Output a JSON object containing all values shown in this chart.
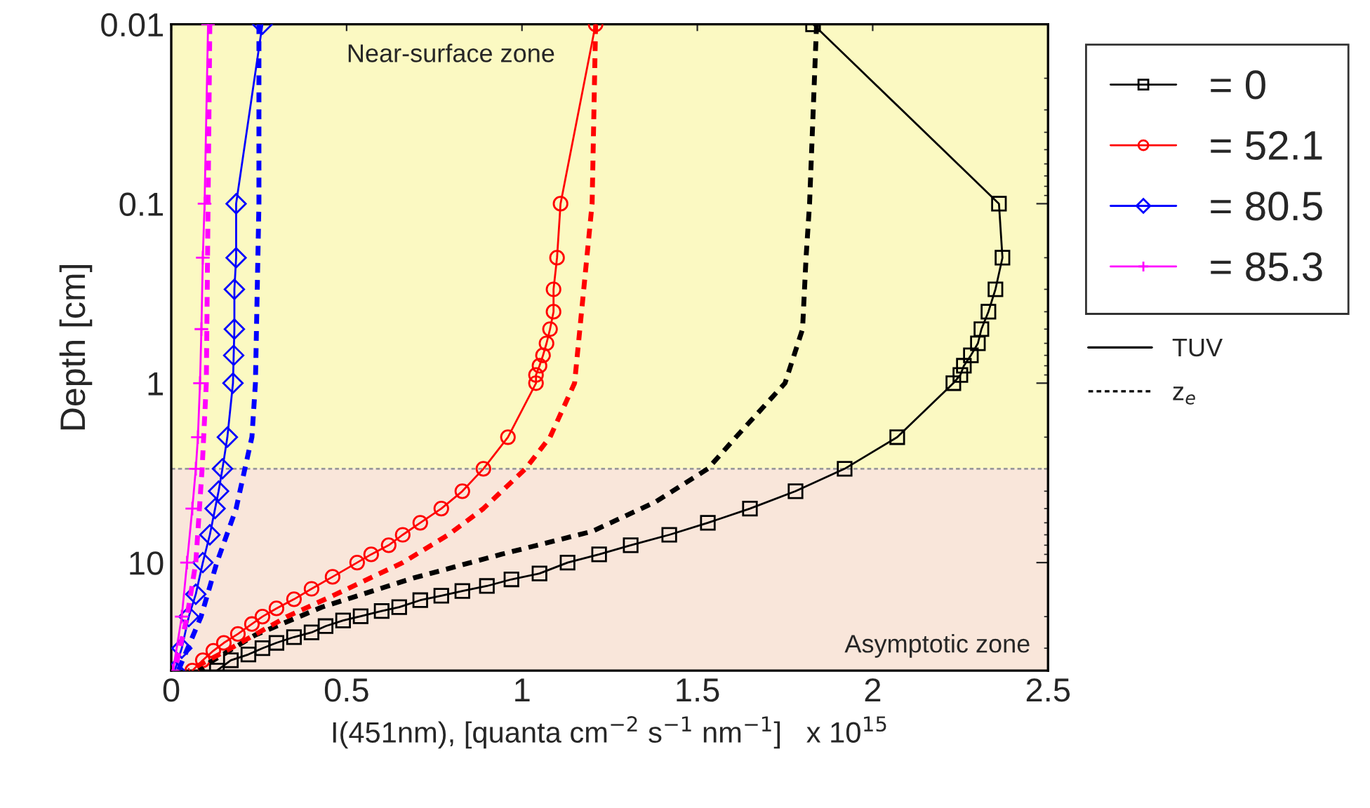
{
  "chart_data": {
    "type": "line",
    "xlabel": "I(451nm), [quanta cm$^{−2}$ s$^{−1}$ nm$^{−1}$]   x 10$^{15}$",
    "ylabel": "Depth [cm]",
    "xlim": [
      0,
      2.5
    ],
    "xticks": [
      0,
      0.5,
      1,
      1.5,
      2,
      2.5
    ],
    "ylim": [
      40,
      0.01
    ],
    "yticks": [
      0.01,
      0.1,
      1,
      10
    ],
    "log": "y",
    "grid": false,
    "legend": "right",
    "series": [
      {
        "name": "= 0",
        "color": "#000000",
        "marker": "square",
        "line_style": "solid",
        "x": [
          1.83,
          2.36,
          2.37,
          2.35,
          2.33,
          2.31,
          2.3,
          2.28,
          2.26,
          2.25,
          2.23,
          2.07,
          1.92,
          1.78,
          1.65,
          1.53,
          1.42,
          1.31,
          1.22,
          1.13,
          1.05,
          0.97,
          0.9,
          0.83,
          0.77,
          0.71,
          0.65,
          0.6,
          0.54,
          0.49,
          0.44,
          0.4,
          0.35,
          0.3,
          0.26,
          0.22,
          0.17,
          0.13
        ],
        "values": [
          0.01,
          0.1,
          0.2,
          0.3,
          0.4,
          0.5,
          0.6,
          0.7,
          0.8,
          0.9,
          1,
          2,
          3,
          4,
          5,
          6,
          7,
          8,
          9,
          10,
          11.5,
          12.4,
          13.5,
          14.4,
          15.3,
          16.2,
          17.7,
          18.6,
          19.9,
          21,
          22.6,
          24.5,
          26,
          28,
          30,
          32.5,
          35,
          40
        ]
      },
      {
        "name": "= 52.1",
        "color": "#ff0000",
        "marker": "circle",
        "line_style": "solid",
        "x": [
          1.21,
          1.11,
          1.1,
          1.09,
          1.09,
          1.08,
          1.07,
          1.06,
          1.05,
          1.04,
          1.04,
          0.96,
          0.89,
          0.83,
          0.77,
          0.71,
          0.66,
          0.62,
          0.57,
          0.53,
          0.46,
          0.4,
          0.35,
          0.3,
          0.26,
          0.23,
          0.19,
          0.15,
          0.12,
          0.09,
          0.06
        ],
        "values": [
          0.01,
          0.1,
          0.2,
          0.3,
          0.4,
          0.5,
          0.6,
          0.7,
          0.8,
          0.9,
          1,
          2,
          3,
          4,
          5,
          6,
          7,
          8,
          9,
          10,
          12,
          14,
          16,
          18,
          20,
          22,
          25,
          28,
          31,
          35,
          40
        ]
      },
      {
        "name": "= 80.5",
        "color": "#0000ff",
        "marker": "diamond",
        "line_style": "solid",
        "x": [
          0.26,
          0.185,
          0.185,
          0.18,
          0.18,
          0.178,
          0.176,
          0.16,
          0.146,
          0.135,
          0.125,
          0.11,
          0.09,
          0.07,
          0.05,
          0.03,
          0.01
        ],
        "values": [
          0.01,
          0.1,
          0.2,
          0.3,
          0.5,
          0.7,
          1,
          2,
          3,
          4,
          5,
          7,
          10,
          15,
          20,
          30,
          40
        ]
      },
      {
        "name": "= 85.3",
        "color": "#ff00ff",
        "marker": "cross",
        "line_style": "solid",
        "x": [
          0.105,
          0.095,
          0.09,
          0.086,
          0.082,
          0.076,
          0.07,
          0.06,
          0.045,
          0.03,
          0.005
        ],
        "values": [
          0.01,
          0.1,
          0.2,
          0.5,
          1,
          2,
          3,
          5,
          10,
          20,
          40
        ]
      },
      {
        "color": "#000000",
        "marker": "none",
        "line_style": "dashed",
        "x": [
          1.84,
          1.82,
          1.81,
          1.8,
          1.75,
          1.61,
          1.53,
          1.38,
          1.2,
          0.94,
          0.69,
          0.43,
          0.24,
          0.11,
          0.08
        ],
        "values": [
          0.01,
          0.1,
          0.2,
          0.5,
          1,
          2,
          3,
          4.6,
          6.7,
          9,
          12.2,
          17.7,
          25.3,
          36,
          40
        ]
      },
      {
        "color": "#ff0000",
        "marker": "none",
        "line_style": "dashed",
        "x": [
          1.21,
          1.2,
          1.15,
          1.08,
          1.01,
          0.89,
          0.79,
          0.66,
          0.47,
          0.33,
          0.17,
          0.05
        ],
        "values": [
          0.01,
          0.1,
          1,
          2,
          3,
          5,
          7,
          10,
          15,
          20,
          30,
          40
        ]
      },
      {
        "color": "#0000ff",
        "marker": "none",
        "line_style": "dashed",
        "x": [
          0.25,
          0.25,
          0.24,
          0.23,
          0.21,
          0.185,
          0.13,
          0.085,
          0.02
        ],
        "values": [
          0.01,
          0.1,
          1,
          2,
          3,
          5,
          10,
          20,
          40
        ]
      },
      {
        "color": "#ff00ff",
        "marker": "none",
        "line_style": "dashed",
        "x": [
          0.11,
          0.1,
          0.088,
          0.07,
          0.045,
          0.01
        ],
        "values": [
          0.01,
          1,
          3,
          10,
          20,
          40
        ]
      }
    ],
    "bands": [
      {
        "axis": "y",
        "from": 0.01,
        "to": 3,
        "label": "Near-surface zone",
        "color": "#fbf9c2"
      },
      {
        "axis": "y",
        "from": 3,
        "to": 40,
        "label": "Asymptotic zone",
        "color": "#f9e6da"
      }
    ],
    "ref_lines": [
      {
        "axis": "y",
        "value": 3,
        "color": "#999999",
        "line_style": "dashed"
      }
    ],
    "annotations": [
      "TUV",
      "z$_{e}$"
    ]
  }
}
